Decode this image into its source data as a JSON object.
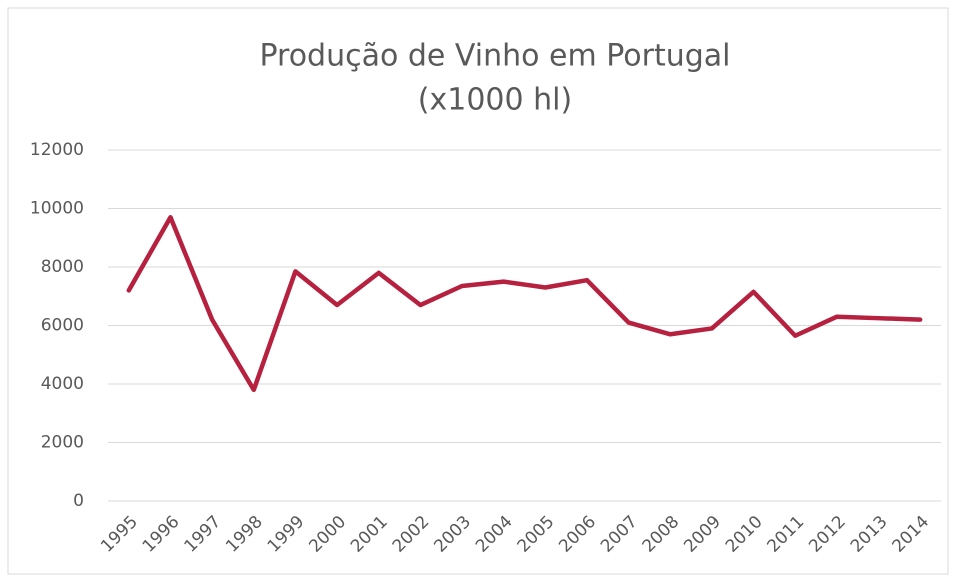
{
  "chart_data": {
    "type": "line",
    "title": "Produção de Vinho em Portugal",
    "subtitle": "(x1000 hl)",
    "categories": [
      "1995",
      "1996",
      "1997",
      "1998",
      "1999",
      "2000",
      "2001",
      "2002",
      "2003",
      "2004",
      "2005",
      "2006",
      "2007",
      "2008",
      "2009",
      "2010",
      "2011",
      "2012",
      "2013",
      "2014"
    ],
    "values": [
      7200,
      9700,
      6200,
      3800,
      7850,
      6700,
      7800,
      6700,
      7350,
      7500,
      7300,
      7550,
      6100,
      5700,
      5900,
      7150,
      5650,
      6300,
      6250,
      6200
    ],
    "color": "#b5213f",
    "ylim": [
      0,
      12000
    ],
    "yticks": [
      0,
      2000,
      4000,
      6000,
      8000,
      10000,
      12000
    ],
    "grid": true
  }
}
